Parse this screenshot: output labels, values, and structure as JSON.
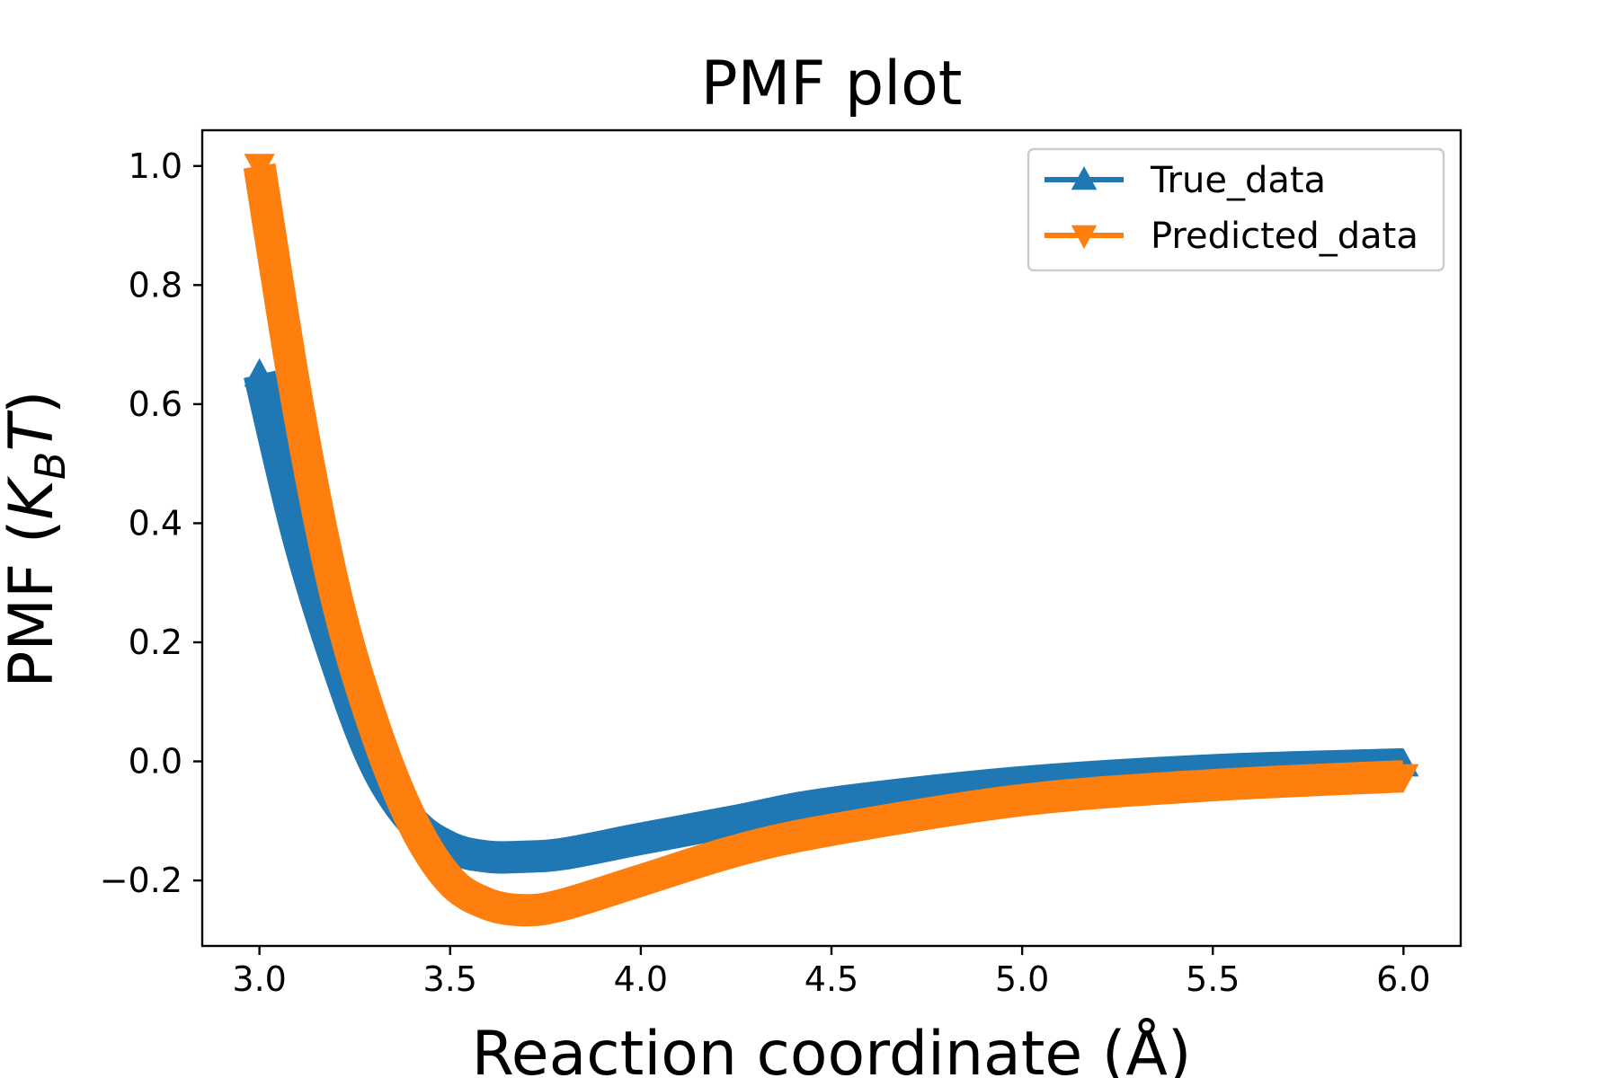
{
  "chart_data": {
    "type": "line",
    "title": "PMF plot",
    "xlabel": "Reaction coordinate (Å)",
    "ylabel_main": "PMF (",
    "ylabel_k": "K",
    "ylabel_sub": "B",
    "ylabel_t": "T",
    "ylabel_close": ")",
    "xlim": [
      2.85,
      6.15
    ],
    "ylim": [
      -0.31,
      1.06
    ],
    "xticks": [
      3.0,
      3.5,
      4.0,
      4.5,
      5.0,
      5.5,
      6.0
    ],
    "xtick_labels": [
      "3.0",
      "3.5",
      "4.0",
      "4.5",
      "5.0",
      "5.5",
      "6.0"
    ],
    "yticks": [
      -0.2,
      0.0,
      0.2,
      0.4,
      0.6,
      0.8,
      1.0
    ],
    "ytick_labels": [
      "−0.2",
      "0.0",
      "0.2",
      "0.4",
      "0.6",
      "0.8",
      "1.0"
    ],
    "grid": false,
    "legend_position": "top-right",
    "series": [
      {
        "name": "True_data",
        "color": "#1f77b4",
        "marker": "triangle-up",
        "x": [
          3.0,
          3.1,
          3.2,
          3.3,
          3.4,
          3.5,
          3.6,
          3.7,
          3.8,
          4.0,
          4.25,
          4.5,
          5.0,
          5.5,
          6.0
        ],
        "y": [
          0.65,
          0.38,
          0.17,
          0.0,
          -0.1,
          -0.145,
          -0.16,
          -0.16,
          -0.155,
          -0.13,
          -0.1,
          -0.07,
          -0.035,
          -0.015,
          -0.005
        ]
      },
      {
        "name": "Predicted_data",
        "color": "#ff7f0e",
        "marker": "triangle-down",
        "x": [
          3.0,
          3.1,
          3.2,
          3.3,
          3.4,
          3.5,
          3.6,
          3.7,
          3.8,
          4.0,
          4.25,
          4.5,
          5.0,
          5.5,
          6.0
        ],
        "y": [
          1.0,
          0.6,
          0.28,
          0.06,
          -0.1,
          -0.2,
          -0.24,
          -0.25,
          -0.24,
          -0.2,
          -0.15,
          -0.115,
          -0.065,
          -0.04,
          -0.025
        ]
      }
    ]
  }
}
